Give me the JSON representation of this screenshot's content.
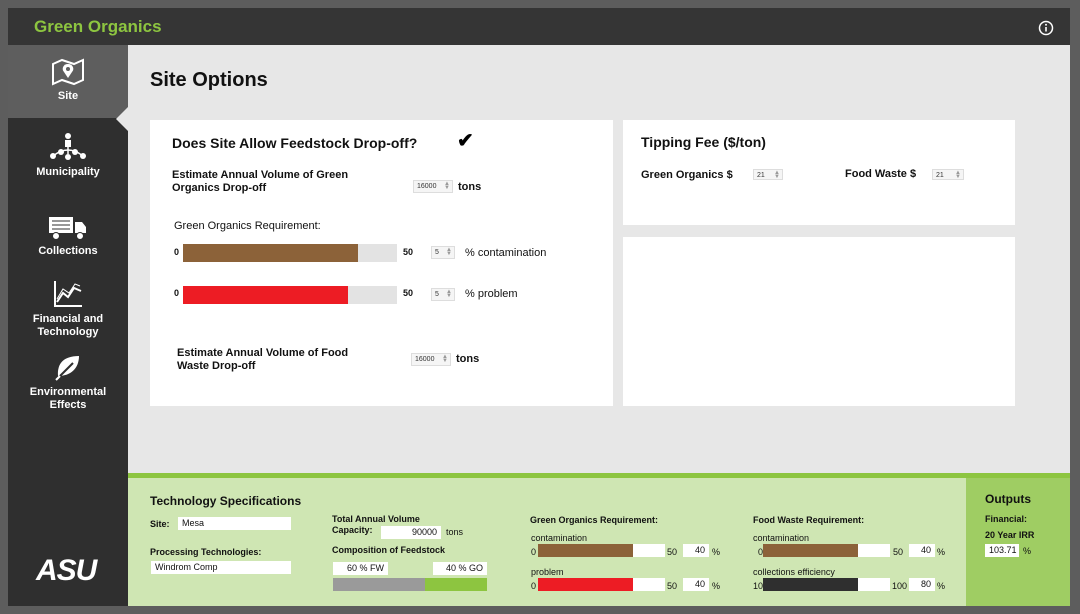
{
  "app": {
    "title": "Green Organics"
  },
  "colors": {
    "brand_green": "#8dc540",
    "brown": "#8c6239",
    "red": "#ed1c24",
    "dark": "#2f2f2f"
  },
  "sidebar": {
    "items": [
      {
        "label": "Site",
        "icon": "map-pin-icon",
        "active": true
      },
      {
        "label": "Municipality",
        "icon": "people-network-icon"
      },
      {
        "label": "Collections",
        "icon": "truck-icon"
      },
      {
        "label": "Financial and Technology",
        "line1": "Financial and",
        "line2": "Technology",
        "icon": "chart-line-icon"
      },
      {
        "label": "Environmental Effects",
        "line1": "Environmental",
        "line2": "Effects",
        "icon": "leaf-icon"
      }
    ],
    "logo": "ASU"
  },
  "page": {
    "title": "Site Options"
  },
  "dropoff": {
    "question": "Does Site Allow Feedstock Drop-off?",
    "checked": true,
    "go_volume_label_1": "Estimate Annual Volume of Green",
    "go_volume_label_2": "Organics Drop-off",
    "go_volume_value": "16000",
    "go_volume_unit": "tons",
    "go_req_label": "Green Organics Requirement:",
    "contamination": {
      "min": "0",
      "max": "50",
      "value": "5",
      "unit": "% contamination",
      "fraction": 0.82
    },
    "problem": {
      "min": "0",
      "max": "50",
      "value": "5",
      "unit": "% problem",
      "fraction": 0.77
    },
    "fw_volume_label_1": "Estimate Annual Volume of Food",
    "fw_volume_label_2": "Waste Drop-off",
    "fw_volume_value": "16000",
    "fw_volume_unit": "tons"
  },
  "tipping": {
    "title": "Tipping Fee ($/ton)",
    "go_label": "Green Organics $",
    "go_value": "21",
    "fw_label": "Food Waste $",
    "fw_value": "21"
  },
  "tech": {
    "title": "Technology Specifications",
    "site_label": "Site:",
    "site_value": "Mesa",
    "proc_label": "Processing Technologies:",
    "proc_value": "Windrom Comp",
    "capacity_label_1": "Total Annual Volume",
    "capacity_label_2": "Capacity:",
    "capacity_value": "90000",
    "capacity_unit": "tons",
    "composition_label": "Composition of Feedstock",
    "fw_pct": "60",
    "fw_unit": "% FW",
    "go_pct": "40",
    "go_unit": "% GO",
    "fw_fraction": 0.6,
    "go_req": {
      "title": "Green Organics Requirement:",
      "contamination_label": "contamination",
      "contamination_min": "0",
      "contamination_max": "50",
      "contamination_value": "40",
      "contamination_fraction": 0.75,
      "problem_label": "problem",
      "problem_min": "0",
      "problem_max": "50",
      "problem_value": "40",
      "problem_fraction": 0.75,
      "unit": "%"
    },
    "fw_req": {
      "title": "Food Waste Requirement:",
      "contamination_label": "contamination",
      "contamination_min": "0",
      "contamination_max": "50",
      "contamination_value": "40",
      "contamination_fraction": 0.75,
      "efficiency_label": "collections efficiency",
      "efficiency_min": "10",
      "efficiency_max": "100",
      "efficiency_value": "80",
      "efficiency_fraction": 0.75,
      "unit": "%"
    }
  },
  "outputs": {
    "title": "Outputs",
    "financial_label": "Financial:",
    "irr_label": "20 Year IRR",
    "irr_value": "103.71",
    "irr_unit": "%"
  }
}
